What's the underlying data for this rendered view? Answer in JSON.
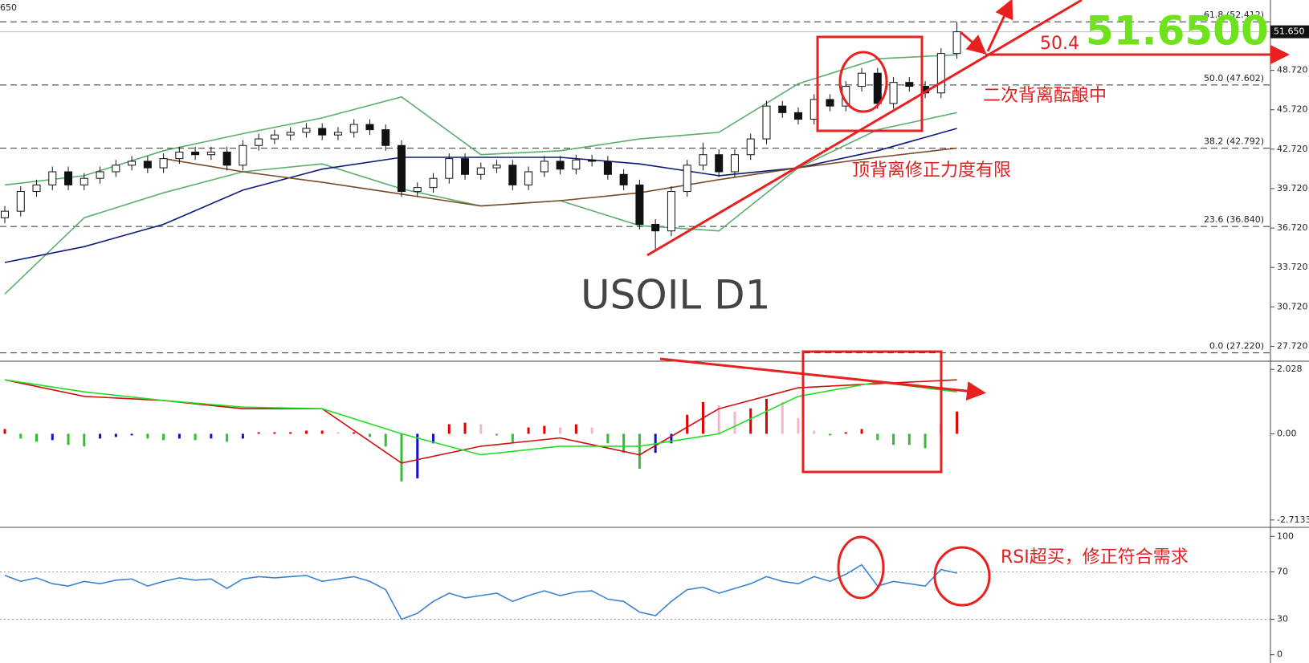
{
  "chart_data": [
    {
      "type": "candlestick",
      "corner_label": "650",
      "annotations": [
        "USOIL  D1",
        "51.6500",
        "50.4",
        "二次背离酝酿中",
        "顶背离修正力度有限"
      ],
      "ylim": [
        26.77,
        54.07
      ],
      "yticks": [
        {
          "value": 48.72,
          "label": "48.720"
        },
        {
          "value": 45.72,
          "label": "45.720"
        },
        {
          "value": 42.72,
          "label": "42.720"
        },
        {
          "value": 39.72,
          "label": "39.720"
        },
        {
          "value": 36.72,
          "label": "36.720"
        },
        {
          "value": 33.72,
          "label": "33.720"
        },
        {
          "value": 30.72,
          "label": "30.720"
        },
        {
          "value": 27.72,
          "label": "27.720"
        }
      ],
      "current_price": {
        "value": 51.65,
        "label": "51.650"
      },
      "levels": [
        {
          "value": 52.412,
          "label": "61.8 (52.412)"
        },
        {
          "value": 47.602,
          "label": "50.0 (47.602)"
        },
        {
          "value": 42.792,
          "label": "38.2 (42.792)"
        },
        {
          "value": 36.84,
          "label": "23.6 (36.840)"
        },
        {
          "value": 27.22,
          "label": "0.0 (27.220)"
        }
      ],
      "open": [
        37.5,
        38.0,
        39.5,
        40.0,
        41.0,
        40.0,
        40.5,
        41.0,
        41.5,
        41.8,
        41.3,
        42.0,
        42.5,
        42.3,
        42.5,
        41.5,
        43.0,
        43.5,
        43.8,
        44.0,
        44.3,
        43.8,
        44.0,
        44.6,
        44.2,
        43.0,
        39.5,
        39.8,
        40.5,
        42.0,
        40.8,
        41.3,
        41.5,
        40.0,
        41.0,
        41.8,
        41.2,
        41.9,
        41.8,
        40.8,
        40.0,
        37.0,
        36.5,
        39.5,
        41.5,
        42.3,
        41.0,
        42.3,
        43.5,
        46.0,
        45.5,
        45.0,
        46.5,
        46.0,
        47.5,
        48.5,
        46.2,
        47.8,
        47.5,
        47.0,
        50.0
      ],
      "high": [
        38.4,
        39.9,
        40.4,
        41.4,
        41.4,
        40.9,
        41.4,
        41.9,
        42.2,
        42.2,
        42.4,
        42.9,
        42.9,
        42.9,
        42.9,
        43.4,
        43.9,
        44.2,
        44.4,
        44.7,
        44.7,
        44.4,
        45.0,
        45.0,
        44.6,
        43.4,
        40.2,
        40.9,
        42.4,
        42.4,
        41.7,
        41.9,
        41.9,
        41.4,
        42.2,
        42.2,
        42.3,
        42.3,
        42.2,
        41.2,
        40.4,
        37.4,
        39.9,
        41.9,
        43.2,
        42.7,
        42.7,
        43.9,
        46.4,
        46.4,
        45.9,
        46.9,
        46.9,
        47.9,
        48.9,
        48.9,
        48.2,
        48.2,
        47.9,
        50.4,
        52.4
      ],
      "low": [
        37.1,
        37.6,
        39.1,
        39.6,
        39.6,
        39.6,
        40.1,
        40.6,
        41.1,
        40.9,
        40.9,
        41.6,
        41.9,
        41.9,
        41.1,
        41.1,
        42.6,
        43.1,
        43.4,
        43.6,
        43.4,
        43.4,
        43.6,
        43.8,
        42.6,
        39.1,
        39.1,
        39.4,
        40.1,
        40.4,
        40.4,
        40.9,
        39.6,
        39.6,
        40.6,
        40.8,
        40.8,
        41.4,
        40.4,
        39.6,
        36.6,
        35.0,
        36.1,
        39.1,
        41.1,
        40.6,
        40.6,
        41.9,
        43.1,
        45.1,
        44.6,
        44.6,
        45.6,
        45.6,
        47.1,
        45.8,
        45.8,
        47.1,
        46.6,
        46.6,
        49.6
      ],
      "close": [
        38.0,
        39.5,
        40.0,
        41.0,
        40.0,
        40.5,
        41.0,
        41.5,
        41.8,
        41.3,
        42.0,
        42.5,
        42.3,
        42.5,
        41.5,
        43.0,
        43.5,
        43.8,
        44.0,
        44.3,
        43.8,
        44.0,
        44.6,
        44.2,
        43.0,
        39.5,
        39.8,
        40.5,
        42.0,
        40.8,
        41.3,
        41.5,
        40.0,
        41.0,
        41.8,
        41.2,
        41.9,
        41.8,
        40.8,
        40.0,
        37.0,
        36.5,
        39.5,
        41.5,
        42.3,
        41.0,
        42.3,
        43.5,
        46.0,
        45.5,
        45.0,
        46.5,
        46.0,
        47.5,
        48.5,
        46.2,
        47.8,
        47.5,
        47.0,
        50.0,
        51.65
      ],
      "overlays": [
        {
          "color": "#5cae6e",
          "x": [
            0,
            5,
            10,
            15,
            20,
            25,
            30,
            35,
            40,
            45,
            50,
            55,
            60
          ],
          "values": [
            40.0,
            40.7,
            42.6,
            43.9,
            45.1,
            46.7,
            42.3,
            42.6,
            43.5,
            44.0,
            47.7,
            49.6,
            49.9
          ]
        },
        {
          "color": "#5cae6e",
          "x": [
            0,
            5,
            10,
            15,
            20,
            25,
            30,
            35,
            40,
            45,
            50,
            55,
            60
          ],
          "values": [
            31.7,
            37.5,
            39.4,
            41.0,
            41.6,
            39.7,
            38.4,
            38.8,
            36.9,
            36.5,
            41.3,
            44.2,
            45.5
          ]
        },
        {
          "color": "#0b1a7a",
          "x": [
            0,
            5,
            10,
            15,
            20,
            25,
            30,
            35,
            40,
            45,
            50,
            55,
            60
          ],
          "values": [
            34.1,
            35.3,
            37.0,
            39.6,
            41.2,
            42.1,
            42.1,
            42.1,
            41.6,
            40.7,
            41.3,
            42.6,
            44.3
          ]
        },
        {
          "color": "#7a4a2a",
          "x": [
            0,
            5,
            10,
            15,
            20,
            25,
            30,
            35,
            40,
            45,
            50,
            55,
            60
          ],
          "values": [
            null,
            null,
            42.0,
            41.0,
            40.2,
            39.3,
            38.4,
            38.8,
            39.4,
            40.4,
            41.3,
            42.1,
            42.8
          ]
        }
      ]
    },
    {
      "type": "macd",
      "ylim": [
        -2.895,
        2.21
      ],
      "yticks": [
        2.028,
        {
          "value": 0,
          "label": "0.00"
        },
        {
          "value": -2.7133,
          "label": "-2.7133"
        }
      ],
      "bar_colors": {
        "rise_pos": "#e00000",
        "fall_pos": "#f4b6c6",
        "fall_neg": "#2fbf2f",
        "rise_neg": "#1010c8"
      },
      "histogram": [
        0.15,
        -0.15,
        -0.25,
        -0.2,
        -0.35,
        -0.4,
        -0.15,
        -0.1,
        -0.05,
        -0.15,
        -0.2,
        -0.15,
        -0.2,
        -0.15,
        -0.25,
        -0.15,
        0.05,
        0.05,
        0.05,
        0.1,
        0.1,
        0.05,
        0.05,
        -0.1,
        -0.4,
        -1.5,
        -1.4,
        -0.3,
        0.3,
        0.35,
        0.3,
        -0.05,
        -0.3,
        0.2,
        0.25,
        0.2,
        0.3,
        0.2,
        -0.3,
        -0.6,
        -1.1,
        -0.6,
        -0.3,
        0.6,
        1.0,
        0.9,
        0.7,
        0.8,
        1.1,
        1.0,
        0.5,
        0.1,
        -0.05,
        0.05,
        0.15,
        -0.2,
        -0.35,
        -0.35,
        -0.45,
        0.3,
        0.7
      ],
      "overlays": [
        {
          "color": "#d01010",
          "x": [
            0,
            5,
            10,
            15,
            20,
            25,
            30,
            35,
            40,
            45,
            50,
            55,
            60
          ],
          "values": [
            1.7,
            1.18,
            1.05,
            0.79,
            0.79,
            -0.92,
            -0.39,
            -0.13,
            -0.66,
            0.79,
            1.45,
            1.58,
            1.7
          ]
        },
        {
          "color": "#22dd22",
          "x": [
            0,
            5,
            10,
            15,
            20,
            25,
            30,
            35,
            40,
            45,
            50,
            55,
            60
          ],
          "values": [
            1.7,
            1.32,
            1.05,
            0.84,
            0.79,
            0.0,
            -0.66,
            -0.39,
            -0.39,
            0.0,
            1.18,
            1.63,
            1.32
          ]
        }
      ]
    },
    {
      "type": "line",
      "annotations": [
        "RSI超买，修正符合需求"
      ],
      "ylim": [
        -7,
        105.6
      ],
      "yticks": [
        100,
        70,
        30,
        0
      ],
      "grid": "inner",
      "overlays": [
        {
          "color": "#3c84d0",
          "values": [
            67,
            62,
            65,
            60,
            58,
            62,
            60,
            63,
            64,
            58,
            62,
            65,
            63,
            64,
            56,
            64,
            66,
            65,
            66,
            67,
            62,
            64,
            66,
            62,
            55,
            30,
            35,
            45,
            52,
            48,
            50,
            52,
            45,
            50,
            54,
            50,
            53,
            54,
            47,
            45,
            36,
            33,
            45,
            55,
            57,
            52,
            56,
            60,
            66,
            62,
            60,
            66,
            62,
            68,
            76,
            58,
            62,
            60,
            58,
            72,
            69
          ]
        }
      ]
    }
  ]
}
